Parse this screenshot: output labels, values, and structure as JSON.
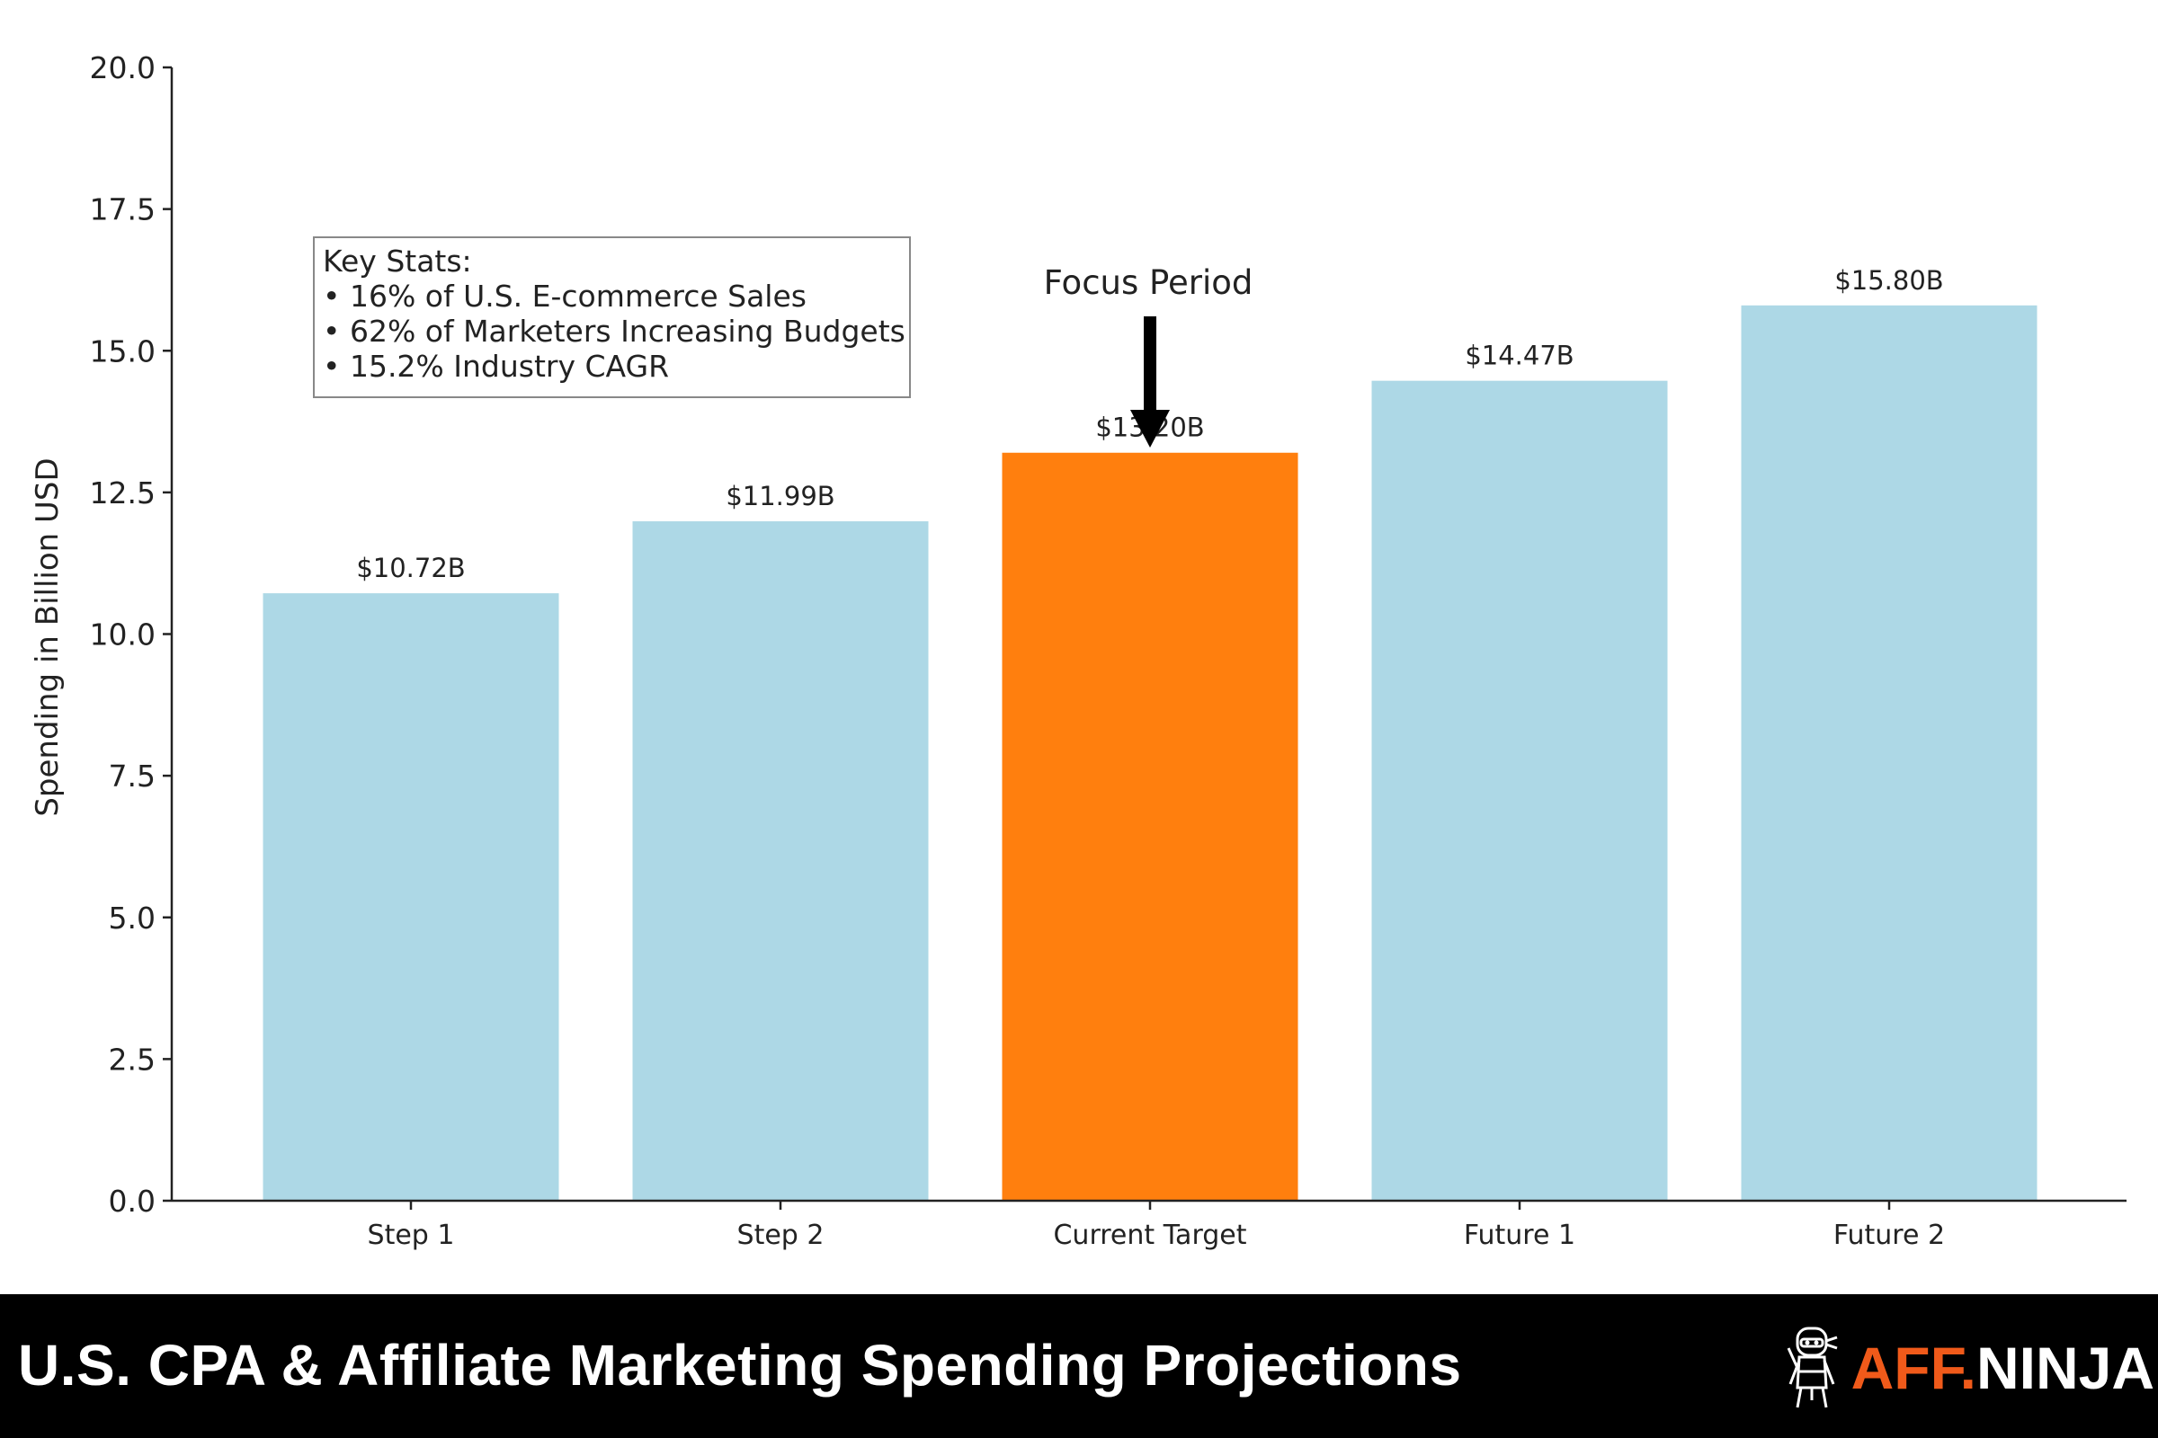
{
  "chart_data": {
    "type": "bar",
    "categories": [
      "Step 1",
      "Step 2",
      "Current Target",
      "Future 1",
      "Future 2"
    ],
    "values": [
      10.72,
      11.99,
      13.2,
      14.47,
      15.8
    ],
    "data_labels": [
      "$10.72B",
      "$11.99B",
      "$13.20B",
      "$14.47B",
      "$15.80B"
    ],
    "highlight_index": 2,
    "colors": {
      "default": "#add8e6",
      "highlight": "#ff7f0e"
    },
    "ylabel": "Spending in Billion USD",
    "xlabel": "",
    "ylim": [
      0,
      20
    ],
    "yticks": [
      "0.0",
      "2.5",
      "5.0",
      "7.5",
      "10.0",
      "12.5",
      "15.0",
      "17.5",
      "20.0"
    ],
    "grid": false,
    "annotation": {
      "text": "Focus Period",
      "target": "Current Target"
    },
    "stats_box": {
      "title": "Key Stats:",
      "items": [
        "• 16% of U.S. E-commerce Sales",
        "• 62% of Marketers Increasing Budgets",
        "• 15.2% Industry CAGR"
      ]
    }
  },
  "footer": {
    "title": "U.S. CPA & Affiliate Marketing Spending Projections",
    "logo_aff": "AFF.",
    "logo_ninja": "NINJA",
    "logo_icon": "ninja-mascot-icon"
  }
}
